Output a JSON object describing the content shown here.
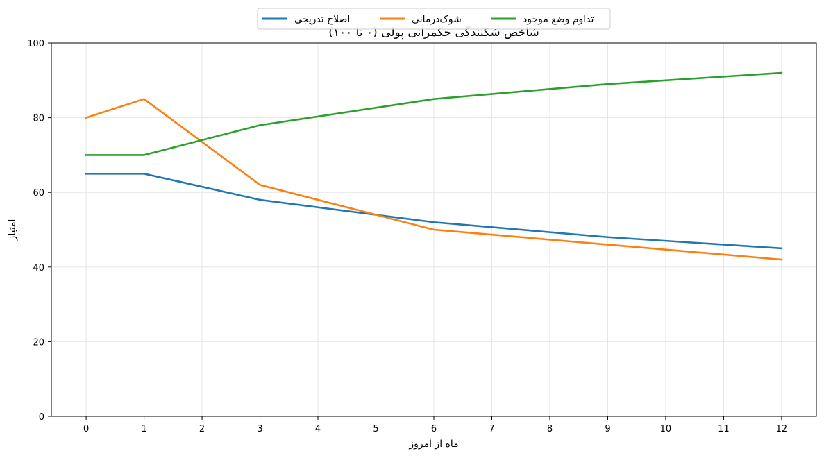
{
  "chart_data": {
    "type": "line",
    "title": "شاخص شکنندگی حکمرانی پولی (۰ تا ۱۰۰)",
    "xlabel": "ماه از امروز",
    "ylabel": "امتیاز",
    "xlim": [
      -0.6,
      12.6
    ],
    "ylim": [
      0,
      100
    ],
    "x_ticks": [
      0,
      1,
      2,
      3,
      4,
      5,
      6,
      7,
      8,
      9,
      10,
      11,
      12
    ],
    "y_ticks": [
      0,
      20,
      40,
      60,
      80,
      100
    ],
    "grid": true,
    "legend_position": "top-center",
    "series": [
      {
        "name": "اصلاح تدریجی",
        "color": "#1f77b4",
        "x": [
          0,
          1,
          3,
          6,
          9,
          12
        ],
        "values": [
          65,
          65,
          58,
          52,
          48,
          45
        ]
      },
      {
        "name": "شوک‌درمانی",
        "color": "#ff7f0e",
        "x": [
          0,
          1,
          3,
          6,
          9,
          12
        ],
        "values": [
          80,
          85,
          62,
          50,
          46,
          42
        ]
      },
      {
        "name": "تداوم وضع موجود",
        "color": "#2ca02c",
        "x": [
          0,
          1,
          3,
          6,
          9,
          12
        ],
        "values": [
          70,
          70,
          78,
          85,
          89,
          92
        ]
      }
    ]
  }
}
